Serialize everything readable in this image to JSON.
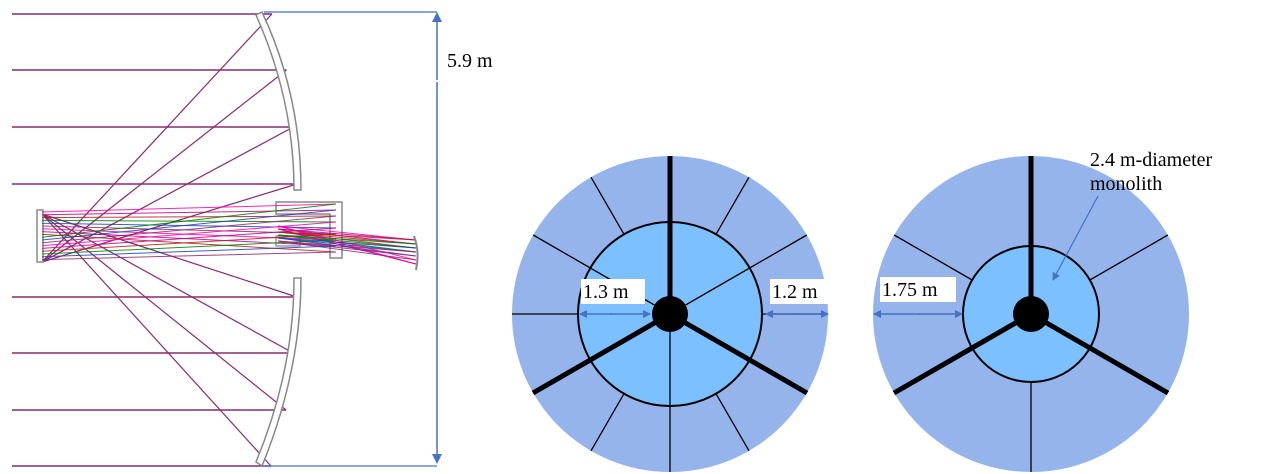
{
  "optical_layout": {
    "dimension_label": "5.9 m"
  },
  "aperture_a": {
    "label_left": "1.3 m",
    "label_right": "1.2 m"
  },
  "aperture_b": {
    "label_left": "1.75 m",
    "monolith_label_line1": "2.4 m-diameter",
    "monolith_label_line2": "monolith"
  },
  "colors": {
    "outer_ring": "#96b4ec",
    "inner_disk": "#7cc0ff",
    "dimension_arrow": "#4472c4",
    "ray": "#8b2a6e",
    "hub": "#000000"
  }
}
